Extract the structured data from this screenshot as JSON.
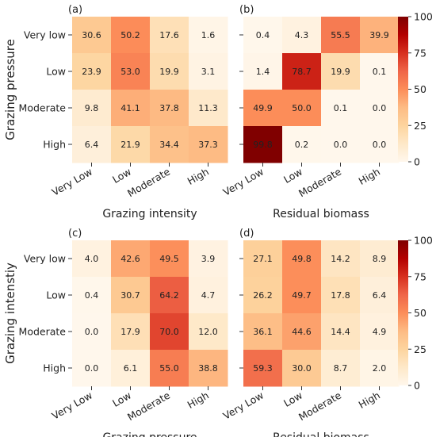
{
  "chart_data": [
    {
      "type": "heatmap",
      "panel": "(a)",
      "ylabel": "Grazing pressure",
      "xlabel": "Grazing intensity",
      "rows": [
        "Very low",
        "Low",
        "Moderate",
        "High"
      ],
      "cols": [
        "Very Low",
        "Low",
        "Moderate",
        "High"
      ],
      "values": [
        [
          30.6,
          50.2,
          17.6,
          1.6
        ],
        [
          23.9,
          53.0,
          19.9,
          3.1
        ],
        [
          9.8,
          41.1,
          37.8,
          11.3
        ],
        [
          6.4,
          21.9,
          34.4,
          37.3
        ]
      ],
      "show_yticks": true
    },
    {
      "type": "heatmap",
      "panel": "(b)",
      "ylabel": "",
      "xlabel": "Residual biomass",
      "rows": [
        "Very low",
        "Low",
        "Moderate",
        "High"
      ],
      "cols": [
        "Very Low",
        "Low",
        "Moderate",
        "High"
      ],
      "values": [
        [
          0.4,
          4.3,
          55.5,
          39.9
        ],
        [
          1.4,
          78.7,
          19.9,
          0.1
        ],
        [
          49.9,
          50.0,
          0.1,
          0.0
        ],
        [
          99.8,
          0.2,
          0.0,
          0.0
        ]
      ],
      "show_yticks": false
    },
    {
      "type": "heatmap",
      "panel": "(c)",
      "ylabel": "Grazing intenstiy",
      "xlabel": "Grazing pressure",
      "rows": [
        "Very low",
        "Low",
        "Moderate",
        "High"
      ],
      "cols": [
        "Very Low",
        "Low",
        "Moderate",
        "High"
      ],
      "values": [
        [
          4.0,
          42.6,
          49.5,
          3.9
        ],
        [
          0.4,
          30.7,
          64.2,
          4.7
        ],
        [
          0.0,
          17.9,
          70.0,
          12.0
        ],
        [
          0.0,
          6.1,
          55.0,
          38.8
        ]
      ],
      "show_yticks": true
    },
    {
      "type": "heatmap",
      "panel": "(d)",
      "ylabel": "",
      "xlabel": "Residual biomass",
      "rows": [
        "Very low",
        "Low",
        "Moderate",
        "High"
      ],
      "cols": [
        "Very Low",
        "Low",
        "Moderate",
        "High"
      ],
      "values": [
        [
          27.1,
          49.8,
          14.2,
          8.9
        ],
        [
          26.2,
          49.7,
          17.8,
          6.4
        ],
        [
          36.1,
          44.6,
          14.4,
          4.9
        ],
        [
          59.3,
          30.0,
          8.7,
          2.0
        ]
      ],
      "show_yticks": false
    }
  ],
  "colorbar": {
    "min": 0,
    "max": 100,
    "ticks": [
      0,
      25,
      50,
      75,
      100
    ],
    "colormap": "OrRd",
    "colors": [
      "#fff7ec",
      "#fee8c8",
      "#fdd49e",
      "#fdbb84",
      "#fc8d59",
      "#ef6548",
      "#d7301f",
      "#b30000",
      "#7f0000"
    ]
  }
}
